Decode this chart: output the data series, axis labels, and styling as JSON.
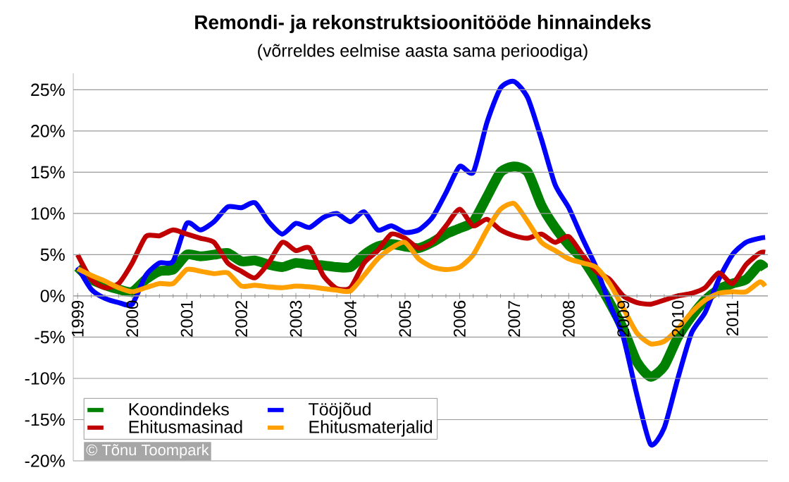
{
  "chart_data": {
    "type": "line",
    "title": "Remondi- ja rekonstruktsioonitööde hinnaindeks",
    "subtitle": "(võrreldes eelmise aasta sama perioodiga)",
    "x": [
      1999,
      1999.25,
      1999.5,
      1999.75,
      2000,
      2000.25,
      2000.5,
      2000.75,
      2001,
      2001.25,
      2001.5,
      2001.75,
      2002,
      2002.25,
      2002.5,
      2002.75,
      2003,
      2003.25,
      2003.5,
      2003.75,
      2004,
      2004.25,
      2004.5,
      2004.75,
      2005,
      2005.25,
      2005.5,
      2005.75,
      2006,
      2006.25,
      2006.5,
      2006.75,
      2007,
      2007.25,
      2007.5,
      2007.75,
      2008,
      2008.25,
      2008.5,
      2008.75,
      2009,
      2009.25,
      2009.5,
      2009.75,
      2010,
      2010.25,
      2010.5,
      2010.75,
      2011,
      2011.25,
      2011.5,
      2011.6
    ],
    "series": [
      {
        "name": "Koondindeks",
        "color": "#008000",
        "values": [
          3.5,
          2,
          1.3,
          0.8,
          0.5,
          2,
          3,
          3.2,
          5,
          4.8,
          5,
          5.2,
          4.2,
          4.3,
          3.8,
          3.5,
          4,
          3.8,
          3.7,
          3.5,
          3.5,
          5,
          6,
          6.3,
          6,
          5.8,
          6.5,
          7.5,
          8.2,
          9,
          12,
          15,
          15.7,
          15,
          11,
          8.3,
          6.2,
          4.5,
          2,
          -0.8,
          -4,
          -8,
          -9.8,
          -8.5,
          -5,
          -2.5,
          -0.5,
          0.8,
          1.5,
          2,
          3.8,
          3.3
        ]
      },
      {
        "name": "Tööjõud",
        "color": "#0000ff",
        "values": [
          3.5,
          0.8,
          -0.3,
          -0.8,
          -1,
          2.5,
          4,
          4.2,
          8.8,
          8,
          9,
          10.8,
          10.7,
          11.3,
          9,
          7.5,
          8.8,
          8.3,
          9.5,
          10,
          9,
          10.2,
          8,
          8.5,
          7.7,
          8,
          9.5,
          12.5,
          15.7,
          15,
          21,
          25.2,
          26,
          24,
          19,
          13.5,
          10.7,
          7,
          3.5,
          -1,
          -5,
          -12,
          -18,
          -16,
          -10,
          -4.5,
          -2,
          2,
          5,
          6.5,
          7,
          7.1
        ]
      },
      {
        "name": "Ehitusmasinad",
        "color": "#c00000",
        "values": [
          5,
          2,
          1,
          1.5,
          4,
          7.2,
          7.3,
          8,
          7.5,
          7,
          6.5,
          4,
          3,
          2.2,
          4,
          6.5,
          5.5,
          5.8,
          2.5,
          0.9,
          1,
          4,
          5.5,
          7.5,
          7,
          5.8,
          6.5,
          8.5,
          10.5,
          8.5,
          9.3,
          8,
          7.3,
          7,
          7.5,
          6.5,
          7.2,
          5,
          3,
          2,
          0,
          -0.8,
          -1,
          -0.5,
          0,
          0.3,
          1,
          2.8,
          1.5,
          3.8,
          5.2,
          5.3
        ]
      },
      {
        "name": "Ehitusmaterjalid",
        "color": "#ffa000",
        "values": [
          3.3,
          2.5,
          1.8,
          1,
          0.5,
          1,
          1.5,
          1.5,
          3.2,
          3,
          2.7,
          2.8,
          1.2,
          1.3,
          1.1,
          1,
          1.2,
          1.1,
          0.9,
          0.7,
          0.6,
          2.5,
          4.5,
          5.8,
          6.5,
          4.5,
          3.5,
          3.2,
          3.5,
          5,
          8,
          10.5,
          11.2,
          9,
          6.5,
          5.5,
          4.5,
          4,
          3.5,
          1.5,
          -1.5,
          -4.5,
          -5.8,
          -5.5,
          -4,
          -2,
          -0.5,
          0.3,
          0.5,
          0.5,
          1.7,
          1.2
        ]
      }
    ],
    "xlim": [
      1998.92,
      2011.65
    ],
    "ylim": [
      -20,
      27
    ],
    "xticks": [
      1999,
      2000,
      2001,
      2002,
      2003,
      2004,
      2005,
      2006,
      2007,
      2008,
      2009,
      2010,
      2011
    ],
    "yticks": [
      {
        "value": -20,
        "label": "-20%"
      },
      {
        "value": -15,
        "label": "-15%"
      },
      {
        "value": -10,
        "label": "-10%"
      },
      {
        "value": -5,
        "label": "-5%"
      },
      {
        "value": 0,
        "label": "0%"
      },
      {
        "value": 5,
        "label": "5%"
      },
      {
        "value": 10,
        "label": "10%"
      },
      {
        "value": 15,
        "label": "15%"
      },
      {
        "value": 20,
        "label": "20%"
      },
      {
        "value": 25,
        "label": "25%"
      }
    ],
    "grid": "y",
    "legend": "bottom left",
    "marker": "none",
    "line_style": "solid",
    "annotations": [
      "© Tõnu Toompark"
    ]
  }
}
